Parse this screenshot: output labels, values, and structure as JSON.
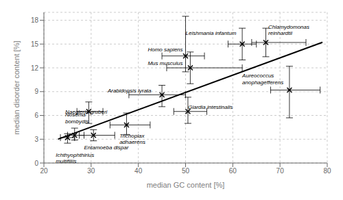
{
  "chart_data": {
    "type": "scatter",
    "xlabel": "median GC content [%]",
    "ylabel": "median disorder content [%]",
    "x": [
      25.0,
      26.5,
      29.5,
      30.5,
      37.5,
      45.0,
      50.0,
      51.0,
      50.5,
      62.0,
      67.0,
      72.0
    ],
    "values": [
      3.2,
      3.5,
      6.5,
      3.5,
      4.8,
      8.6,
      13.5,
      12.0,
      6.5,
      15.0,
      15.2,
      9.2
    ],
    "x_error": [
      [
        1.5,
        1.5
      ],
      [
        1.5,
        2.0
      ],
      [
        2.5,
        3.0
      ],
      [
        3.0,
        4.5
      ],
      [
        3.5,
        5.0
      ],
      [
        7.0,
        5.0
      ],
      [
        5.0,
        4.0
      ],
      [
        5.0,
        11.0
      ],
      [
        3.0,
        4.0
      ],
      [
        3.0,
        3.0
      ],
      [
        3.0,
        8.5
      ],
      [
        4.0,
        6.5
      ]
    ],
    "y_error": [
      [
        0.7,
        0.5
      ],
      [
        0.6,
        0.9
      ],
      [
        1.5,
        1.2
      ],
      [
        0.7,
        0.7
      ],
      [
        1.2,
        1.5
      ],
      [
        1.5,
        1.2
      ],
      [
        2.0,
        5.0
      ],
      [
        2.0,
        2.0
      ],
      [
        1.5,
        1.8
      ],
      [
        2.0,
        2.0
      ],
      [
        1.8,
        1.8
      ],
      [
        3.5,
        3.0
      ]
    ],
    "color": "black",
    "marker": "x",
    "annotations": [
      {
        "text": "Ichthyophthirius\nmultifiliis",
        "x": 22.5,
        "y": 1.4
      },
      {
        "text": "Nosema\nbombydis",
        "x": 24.5,
        "y": 4.9
      },
      {
        "text": "Naegleria gruberi",
        "x": 24.5,
        "y": 6.5
      },
      {
        "text": "Entamoeba dispar",
        "x": 28.5,
        "y": 2.3
      },
      {
        "text": "Trichoplax\nadhaerens",
        "x": 36.0,
        "y": 3.8
      },
      {
        "text": "Arabidopsis lyrata",
        "x": 33.5,
        "y": 8.8
      },
      {
        "text": "Homo sapiens",
        "x": 42.0,
        "y": 13.9
      },
      {
        "text": "Mus musculus",
        "x": 42.0,
        "y": 12.2
      },
      {
        "text": "Giardia intestinalis",
        "x": 50.5,
        "y": 6.7
      },
      {
        "text": "Leishmania infantum",
        "x": 50.0,
        "y": 16.0
      },
      {
        "text": "Chlamydomonas\nreinhardtii",
        "x": 67.5,
        "y": 16.0
      },
      {
        "text": "Aureococcus\nanophagefferens",
        "x": 62.0,
        "y": 9.8
      }
    ],
    "fit_line": {
      "x": [
        23,
        79
      ],
      "values": [
        3.014,
        15.222
      ],
      "color": "black"
    },
    "xlim": [
      20,
      80
    ],
    "ylim": [
      0,
      19
    ],
    "xticks": [
      20,
      30,
      40,
      50,
      60,
      70,
      80
    ],
    "yticks": [
      0,
      3,
      6,
      9,
      12,
      15,
      18
    ],
    "grid": true
  }
}
